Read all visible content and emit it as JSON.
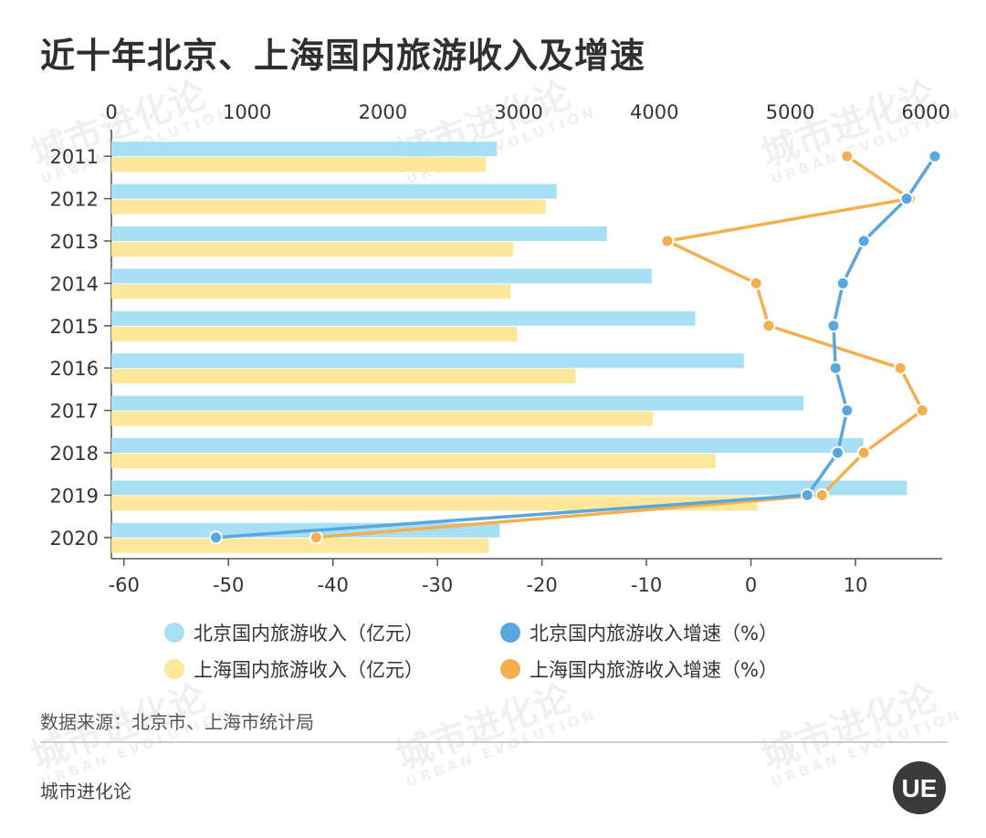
{
  "title": "近十年北京、上海国内旅游收入及增速",
  "source": "数据来源：北京市、上海市统计局",
  "brand": "城市进化论",
  "logo_text": "UE",
  "watermark": {
    "text": "城市进化论",
    "sub": "URBAN EVOLUTION"
  },
  "colors": {
    "beijing_bar": "#a9dff5",
    "shanghai_bar": "#fde79a",
    "beijing_line": "#5aa7e0",
    "shanghai_line": "#f4b04e",
    "axis": "#555555"
  },
  "legend": [
    {
      "label": "北京国内旅游收入（亿元）",
      "color": "#a9dff5"
    },
    {
      "label": "北京国内旅游收入增速（%）",
      "color": "#5aa7e0"
    },
    {
      "label": "上海国内旅游收入（亿元）",
      "color": "#fde79a"
    },
    {
      "label": "上海国内旅游收入增速（%）",
      "color": "#f4b04e"
    }
  ],
  "chart_data": {
    "type": "bar",
    "orientation": "horizontal",
    "categories": [
      "2011",
      "2012",
      "2013",
      "2014",
      "2015",
      "2016",
      "2017",
      "2018",
      "2019",
      "2020"
    ],
    "top_axis": {
      "ticks": [
        0,
        1000,
        2000,
        3000,
        4000,
        5000,
        6000
      ],
      "range": [
        0,
        6120
      ]
    },
    "bottom_axis": {
      "ticks": [
        -60,
        -50,
        -40,
        -30,
        -20,
        -10,
        0,
        10
      ],
      "range": [
        -61.2,
        18.3
      ]
    },
    "series": [
      {
        "name": "北京国内旅游收入（亿元）",
        "kind": "bar",
        "axis": "top",
        "values": [
          2840,
          3280,
          3650,
          3980,
          4300,
          4660,
          5100,
          5540,
          5860,
          2860
        ]
      },
      {
        "name": "上海国内旅游收入（亿元）",
        "kind": "bar",
        "axis": "top",
        "values": [
          2760,
          3200,
          2960,
          2940,
          2990,
          3420,
          3990,
          4450,
          4760,
          2780
        ]
      },
      {
        "name": "北京国内旅游收入增速（%）",
        "kind": "line",
        "axis": "bottom",
        "values": [
          17.6,
          14.9,
          10.8,
          8.8,
          7.9,
          8.1,
          9.2,
          8.3,
          5.4,
          -51.2
        ]
      },
      {
        "name": "上海国内旅游收入增速（%）",
        "kind": "line",
        "axis": "bottom",
        "values": [
          9.2,
          15.2,
          -8.0,
          0.5,
          1.7,
          14.3,
          16.4,
          10.8,
          6.8,
          -41.6
        ]
      }
    ]
  }
}
